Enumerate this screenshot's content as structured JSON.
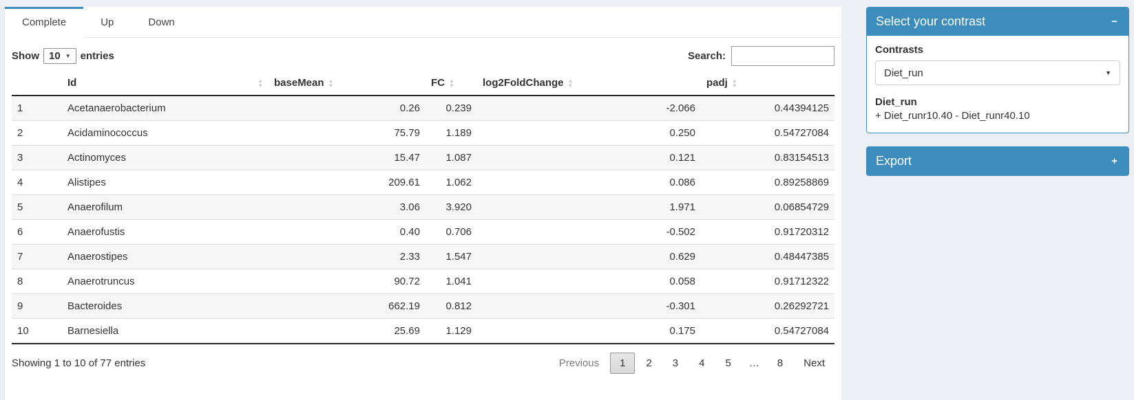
{
  "colors": {
    "primary": "#3c8dbc",
    "page_bg": "#ecf0f5"
  },
  "tabs": [
    {
      "label": "Complete",
      "active": true
    },
    {
      "label": "Up",
      "active": false
    },
    {
      "label": "Down",
      "active": false
    }
  ],
  "length_control": {
    "prefix": "Show",
    "value": "10",
    "suffix": "entries"
  },
  "search": {
    "label": "Search:",
    "value": ""
  },
  "table": {
    "columns": {
      "rownum": "",
      "id": "Id",
      "basemean": "baseMean",
      "fc": "FC",
      "log2fc": "log2FoldChange",
      "padj": "padj"
    },
    "rows": [
      [
        "1",
        "Acetanaerobacterium",
        "0.26",
        "0.239",
        "-2.066",
        "0.44394125"
      ],
      [
        "2",
        "Acidaminococcus",
        "75.79",
        "1.189",
        "0.250",
        "0.54727084"
      ],
      [
        "3",
        "Actinomyces",
        "15.47",
        "1.087",
        "0.121",
        "0.83154513"
      ],
      [
        "4",
        "Alistipes",
        "209.61",
        "1.062",
        "0.086",
        "0.89258869"
      ],
      [
        "5",
        "Anaerofilum",
        "3.06",
        "3.920",
        "1.971",
        "0.06854729"
      ],
      [
        "6",
        "Anaerofustis",
        "0.40",
        "0.706",
        "-0.502",
        "0.91720312"
      ],
      [
        "7",
        "Anaerostipes",
        "2.33",
        "1.547",
        "0.629",
        "0.48447385"
      ],
      [
        "8",
        "Anaerotruncus",
        "90.72",
        "1.041",
        "0.058",
        "0.91712322"
      ],
      [
        "9",
        "Bacteroides",
        "662.19",
        "0.812",
        "-0.301",
        "0.26292721"
      ],
      [
        "10",
        "Barnesiella",
        "25.69",
        "1.129",
        "0.175",
        "0.54727084"
      ]
    ],
    "info": "Showing 1 to 10 of 77 entries",
    "pagination": {
      "previous": "Previous",
      "pages": [
        "1",
        "2",
        "3",
        "4",
        "5",
        "…",
        "8"
      ],
      "active_page": "1",
      "next": "Next"
    }
  },
  "contrast_box": {
    "title": "Select your contrast",
    "collapse_icon": "−",
    "field_label": "Contrasts",
    "selected_contrast": "Diet_run",
    "detail_name": "Diet_run",
    "detail_formula": "+ Diet_runr10.40 - Diet_runr40.10"
  },
  "export_box": {
    "title": "Export",
    "expand_icon": "+"
  }
}
